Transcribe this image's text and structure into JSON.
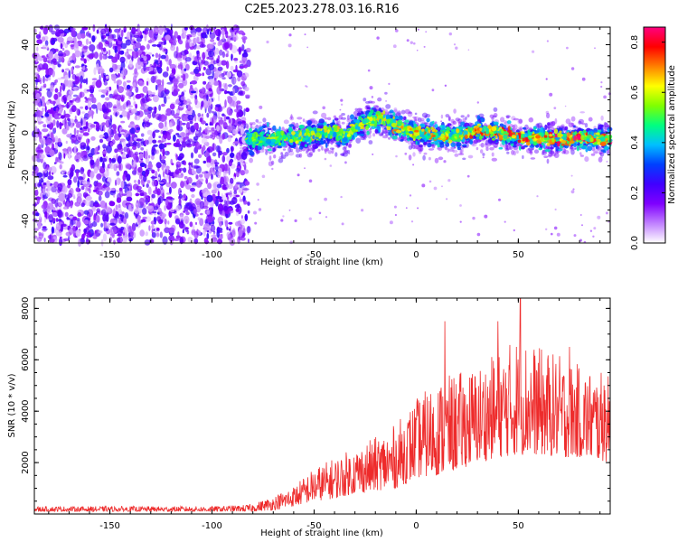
{
  "chart_data": [
    {
      "type": "heatmap",
      "title": "C2E5.2023.278.03.16.R16",
      "xlabel": "Height of straight line (km)",
      "ylabel": "Frequency (Hz)",
      "xlim": [
        -187,
        95
      ],
      "ylim": [
        -50,
        48
      ],
      "xticks": [
        -150,
        -100,
        -50,
        0,
        50
      ],
      "yticks": [
        -40,
        -20,
        0,
        20,
        40
      ],
      "colorbar": {
        "label": "Normalized spectral amplitude",
        "range": [
          0.0,
          0.86
        ],
        "ticks": [
          0.0,
          0.2,
          0.4,
          0.6,
          0.8
        ],
        "colormap": [
          "#ffffff",
          "#c080ff",
          "#7f00ff",
          "#4000ff",
          "#0040ff",
          "#00c0ff",
          "#00ff80",
          "#80ff00",
          "#ffff00",
          "#ff8000",
          "#ff0000",
          "#ff0080"
        ]
      },
      "features": {
        "noise_region_x": [
          -187,
          -82
        ],
        "signal_ridge": {
          "x": [
            -83,
            -70,
            -60,
            -50,
            -40,
            -35,
            -30,
            -25,
            -20,
            -15,
            -10,
            0,
            10,
            20,
            30,
            40,
            50,
            60,
            70,
            80,
            95
          ],
          "y": [
            -3,
            -3,
            -2,
            -1,
            1,
            -3,
            3,
            5,
            7,
            6,
            3,
            0,
            -1,
            -1,
            1,
            0,
            -2,
            -2,
            -3,
            -2,
            -3
          ]
        }
      }
    },
    {
      "type": "line",
      "xlabel": "Height of straight line (km)",
      "ylabel": "SNR (10 * v/v)",
      "xlim": [
        -187,
        95
      ],
      "ylim": [
        0,
        8400
      ],
      "xticks": [
        -150,
        -100,
        -50,
        0,
        50
      ],
      "yticks": [
        2000,
        4000,
        6000,
        8000
      ],
      "color": "#ee2b2b",
      "envelope": {
        "x": [
          -187,
          -100,
          -85,
          -80,
          -70,
          -60,
          -50,
          -40,
          -30,
          -20,
          -10,
          0,
          10,
          20,
          30,
          40,
          50,
          60,
          70,
          80,
          95
        ],
        "low": [
          100,
          100,
          100,
          100,
          150,
          300,
          500,
          600,
          800,
          900,
          1000,
          1400,
          1500,
          1700,
          2000,
          2200,
          2300,
          2300,
          2200,
          2200,
          2000
        ],
        "high": [
          300,
          300,
          350,
          400,
          700,
          1100,
          1800,
          2200,
          2600,
          3000,
          3500,
          4500,
          5200,
          5500,
          5800,
          6300,
          7000,
          6500,
          6200,
          5800,
          5400
        ]
      },
      "spikes": [
        {
          "x": 14,
          "y": 7500
        },
        {
          "x": 40,
          "y": 7500
        },
        {
          "x": 51,
          "y": 8400
        },
        {
          "x": 75,
          "y": 6500
        },
        {
          "x": 92,
          "y": 5000
        }
      ]
    }
  ]
}
